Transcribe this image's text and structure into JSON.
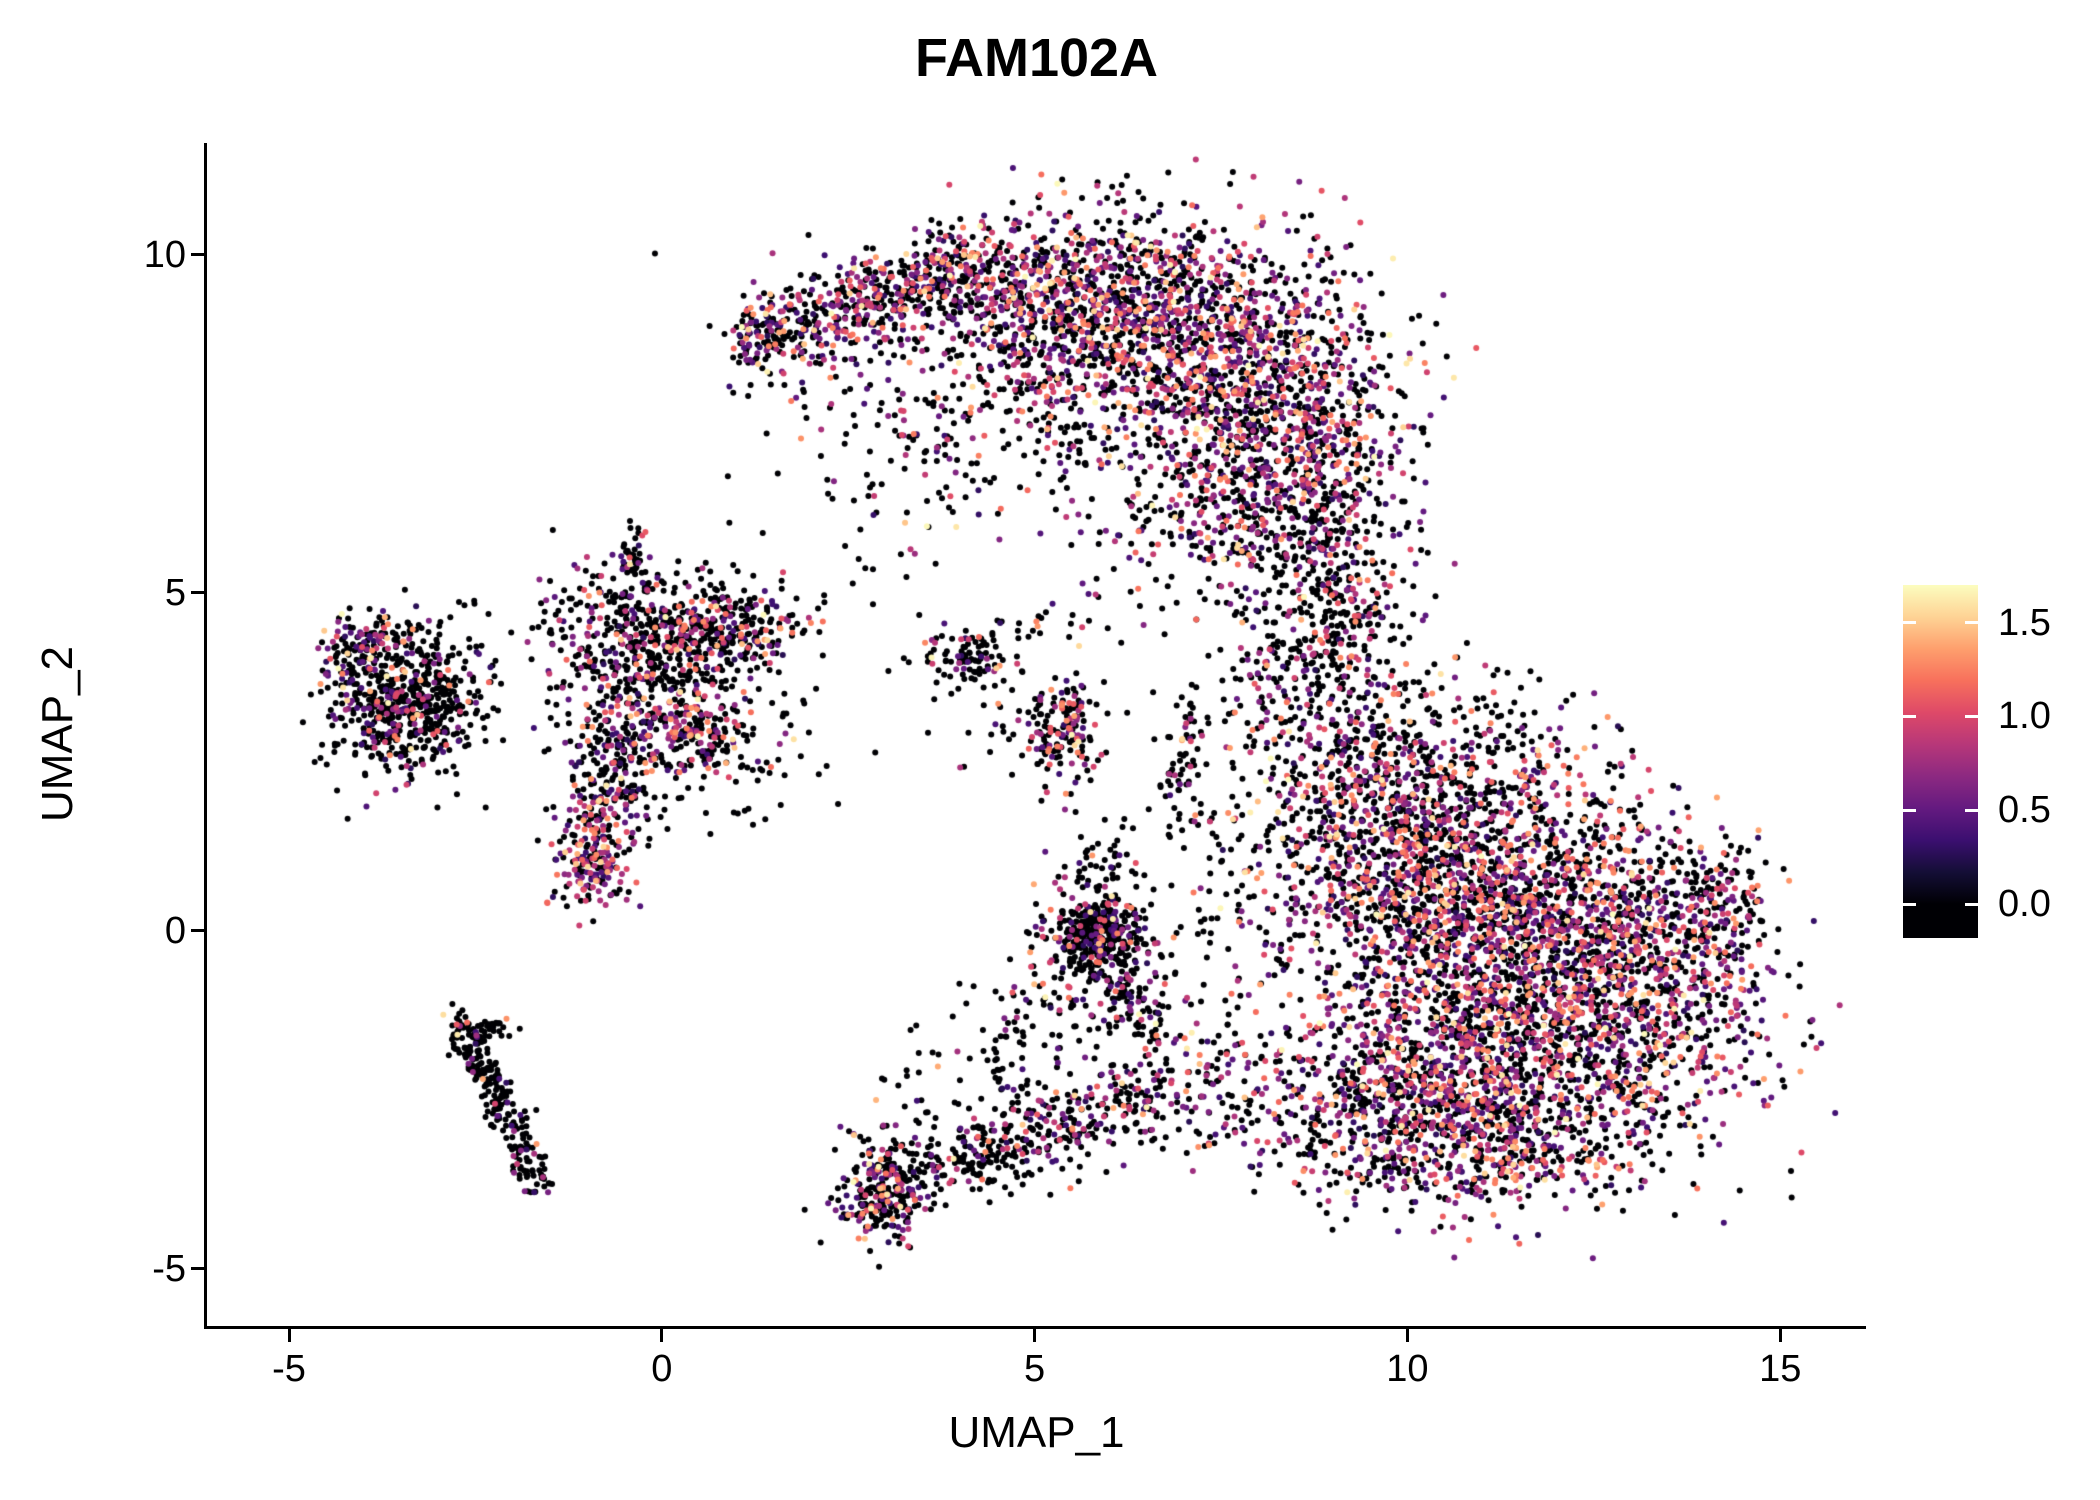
{
  "chart_data": {
    "type": "scatter",
    "title": "FAM102A",
    "xlabel": "UMAP_1",
    "ylabel": "UMAP_2",
    "xlim": [
      -6.1,
      16.15
    ],
    "ylim": [
      -5.85,
      11.65
    ],
    "x_ticks": [
      {
        "value": -5,
        "label": "-5"
      },
      {
        "value": 0,
        "label": "0"
      },
      {
        "value": 5,
        "label": "5"
      },
      {
        "value": 10,
        "label": "10"
      },
      {
        "value": 15,
        "label": "15"
      }
    ],
    "y_ticks": [
      {
        "value": 10,
        "label": "10"
      },
      {
        "value": 5,
        "label": "5"
      },
      {
        "value": 0,
        "label": "0"
      },
      {
        "value": -5,
        "label": "-5"
      }
    ],
    "grid": false,
    "background": "#ffffff",
    "point_radius_px": 3,
    "seed": 42,
    "value_max": 1.7,
    "value_bins": [
      [
        0,
        0
      ],
      [
        0.25,
        0.55
      ],
      [
        0.55,
        0.95
      ],
      [
        0.95,
        1.35
      ],
      [
        1.35,
        1.7
      ]
    ],
    "colormap": "magma",
    "colormap_stops": [
      "#000004",
      "#140e36",
      "#3b0f70",
      "#641a80",
      "#8c2981",
      "#b73779",
      "#de4968",
      "#f7705c",
      "#fe9f6d",
      "#fed395",
      "#fcfdbf"
    ],
    "legend": {
      "position": "right",
      "bar_range": [
        -0.18,
        1.7
      ],
      "ticks": [
        {
          "value": 1.5,
          "label": "1.5"
        },
        {
          "value": 1.0,
          "label": "1.0"
        },
        {
          "value": 0.5,
          "label": "0.5"
        },
        {
          "value": 0.0,
          "label": "0.0"
        }
      ],
      "tick_mark_color": "#ffffff"
    },
    "mixes": {
      "colorful": [
        0.5,
        0.15,
        0.17,
        0.14,
        0.04
      ],
      "mixed": [
        0.55,
        0.14,
        0.16,
        0.12,
        0.03
      ],
      "blackish": [
        0.68,
        0.1,
        0.11,
        0.09,
        0.02
      ],
      "mostly_black": [
        0.8,
        0.08,
        0.07,
        0.04,
        0.01
      ],
      "sparse_black": [
        0.86,
        0.05,
        0.05,
        0.03,
        0.01
      ],
      "pink_heavy": [
        0.38,
        0.15,
        0.24,
        0.18,
        0.05
      ]
    },
    "clusters": [
      {
        "name": "crescent-ridge",
        "kind": "stripe",
        "x1": 1.5,
        "y1": 8.8,
        "x2": 4.3,
        "y2": 9.9,
        "jitter": 0.32,
        "n": 500,
        "mix": "colorful"
      },
      {
        "name": "crescent-tip",
        "kind": "blob",
        "cx": 1.35,
        "cy": 8.8,
        "sx": 0.22,
        "sy": 0.28,
        "n": 90,
        "mix": "colorful"
      },
      {
        "name": "crescent-mid",
        "kind": "blob",
        "cx": 5.4,
        "cy": 9.4,
        "sx": 1.0,
        "sy": 0.62,
        "n": 800,
        "mix": "colorful"
      },
      {
        "name": "crescent-right",
        "kind": "blob",
        "cx": 7.3,
        "cy": 8.5,
        "sx": 1.15,
        "sy": 0.95,
        "n": 1200,
        "mix": "colorful"
      },
      {
        "name": "crescent-lower-right",
        "kind": "blob",
        "cx": 8.6,
        "cy": 7.1,
        "sx": 0.7,
        "sy": 1.0,
        "n": 600,
        "mix": "colorful"
      },
      {
        "name": "crescent-inner-sparse",
        "kind": "blob",
        "cx": 4.4,
        "cy": 7.9,
        "sx": 1.25,
        "sy": 0.75,
        "n": 240,
        "mix": "blackish"
      },
      {
        "name": "crescent-under",
        "kind": "blob",
        "cx": 7.6,
        "cy": 6.1,
        "sx": 0.85,
        "sy": 0.5,
        "n": 240,
        "mix": "colorful"
      },
      {
        "name": "crescent-below-sparse",
        "kind": "blob",
        "cx": 3.4,
        "cy": 7.1,
        "sx": 0.8,
        "sy": 0.55,
        "n": 70,
        "mix": "blackish"
      },
      {
        "name": "neck",
        "kind": "blob",
        "cx": 9.0,
        "cy": 4.6,
        "sx": 0.5,
        "sy": 1.05,
        "n": 300,
        "mix": "blackish"
      },
      {
        "name": "neck-west",
        "kind": "blob",
        "cx": 8.2,
        "cy": 3.8,
        "sx": 0.5,
        "sy": 0.7,
        "n": 120,
        "mix": "blackish"
      },
      {
        "name": "blob-upper",
        "kind": "blob",
        "cx": 10.4,
        "cy": 0.9,
        "sx": 1.0,
        "sy": 1.0,
        "n": 900,
        "mix": "colorful"
      },
      {
        "name": "blob-core",
        "kind": "blob",
        "cx": 11.6,
        "cy": 0.2,
        "sx": 1.3,
        "sy": 1.0,
        "n": 1200,
        "mix": "colorful"
      },
      {
        "name": "blob-lower",
        "kind": "blob",
        "cx": 11.6,
        "cy": -1.8,
        "sx": 1.4,
        "sy": 0.9,
        "n": 1200,
        "mix": "colorful"
      },
      {
        "name": "blob-lower-left",
        "kind": "blob",
        "cx": 10.0,
        "cy": -2.6,
        "sx": 1.0,
        "sy": 0.7,
        "n": 600,
        "mix": "colorful"
      },
      {
        "name": "blob-east",
        "kind": "blob",
        "cx": 13.4,
        "cy": -0.6,
        "sx": 0.75,
        "sy": 1.0,
        "n": 500,
        "mix": "colorful"
      },
      {
        "name": "blob-east-tip",
        "kind": "blob",
        "cx": 14.3,
        "cy": 0.4,
        "sx": 0.25,
        "sy": 0.5,
        "n": 90,
        "mix": "colorful"
      },
      {
        "name": "blob-top-scatter",
        "kind": "blob",
        "cx": 10.6,
        "cy": 2.6,
        "sx": 1.0,
        "sy": 0.6,
        "n": 240,
        "mix": "blackish"
      },
      {
        "name": "blob-bottom-tail",
        "kind": "blob",
        "cx": 11.2,
        "cy": -3.3,
        "sx": 1.0,
        "sy": 0.45,
        "n": 300,
        "mix": "colorful"
      },
      {
        "name": "blob-northwest",
        "kind": "blob",
        "cx": 9.3,
        "cy": 2.1,
        "sx": 0.55,
        "sy": 0.9,
        "n": 260,
        "mix": "colorful"
      },
      {
        "name": "west-of-blob-sparse",
        "kind": "blob",
        "cx": 7.9,
        "cy": 1.0,
        "sx": 0.7,
        "sy": 1.1,
        "n": 170,
        "mix": "blackish"
      },
      {
        "name": "trail-vertical",
        "kind": "stripe",
        "x1": 6.85,
        "y1": 1.4,
        "x2": 7.1,
        "y2": 3.4,
        "jitter": 0.15,
        "n": 70,
        "mix": "sparse_black"
      },
      {
        "name": "mid-sparse-upper",
        "kind": "blob",
        "cx": 6.3,
        "cy": 5.2,
        "sx": 0.5,
        "sy": 0.5,
        "n": 25,
        "mix": "sparse_black"
      },
      {
        "name": "clump-center",
        "kind": "blob",
        "cx": 5.85,
        "cy": -0.1,
        "sx": 0.28,
        "sy": 0.3,
        "n": 300,
        "mix": "mostly_black"
      },
      {
        "name": "clump-center-halo",
        "kind": "blob",
        "cx": 5.9,
        "cy": -0.2,
        "sx": 0.55,
        "sy": 0.55,
        "n": 150,
        "mix": "mixed"
      },
      {
        "name": "clump-tail",
        "kind": "stripe",
        "x1": 6.1,
        "y1": -0.6,
        "x2": 6.6,
        "y2": -1.6,
        "jitter": 0.2,
        "n": 80,
        "mix": "blackish"
      },
      {
        "name": "clump-above",
        "kind": "blob",
        "cx": 5.9,
        "cy": 0.9,
        "sx": 0.3,
        "sy": 0.4,
        "n": 40,
        "mix": "blackish"
      },
      {
        "name": "center-small-a",
        "kind": "blob",
        "cx": 4.1,
        "cy": 4.05,
        "sx": 0.32,
        "sy": 0.22,
        "n": 100,
        "mix": "mostly_black"
      },
      {
        "name": "center-small-b",
        "kind": "blob",
        "cx": 5.35,
        "cy": 3.0,
        "sx": 0.24,
        "sy": 0.45,
        "n": 160,
        "mix": "mixed"
      },
      {
        "name": "center-small-c",
        "kind": "blob",
        "cx": 5.0,
        "cy": 4.55,
        "sx": 0.28,
        "sy": 0.15,
        "n": 15,
        "mix": "sparse_black"
      },
      {
        "name": "center-small-halo",
        "kind": "blob",
        "cx": 4.8,
        "cy": 3.1,
        "sx": 0.5,
        "sy": 0.5,
        "n": 30,
        "mix": "sparse_black"
      },
      {
        "name": "left-main",
        "kind": "blob",
        "cx": -0.1,
        "cy": 4.2,
        "sx": 0.75,
        "sy": 0.6,
        "n": 600,
        "mix": "blackish"
      },
      {
        "name": "left-top-spike",
        "kind": "stripe",
        "x1": -0.45,
        "y1": 5.25,
        "x2": -0.3,
        "y2": 5.9,
        "jitter": 0.1,
        "n": 40,
        "mix": "mostly_black"
      },
      {
        "name": "left-right-arm",
        "kind": "blob",
        "cx": 1.15,
        "cy": 4.55,
        "sx": 0.45,
        "sy": 0.25,
        "n": 140,
        "mix": "mixed"
      },
      {
        "name": "left-down-arm",
        "kind": "stripe",
        "x1": -0.5,
        "y1": 3.1,
        "x2": -1.0,
        "y2": 1.1,
        "jitter": 0.3,
        "n": 280,
        "mix": "mixed"
      },
      {
        "name": "left-bottom-clump",
        "kind": "blob",
        "cx": -0.95,
        "cy": 0.9,
        "sx": 0.25,
        "sy": 0.3,
        "n": 120,
        "mix": "pink_heavy"
      },
      {
        "name": "left-mid-clump",
        "kind": "blob",
        "cx": 0.45,
        "cy": 2.9,
        "sx": 0.3,
        "sy": 0.3,
        "n": 130,
        "mix": "pink_heavy"
      },
      {
        "name": "left-scatter",
        "kind": "blob",
        "cx": 0.2,
        "cy": 3.3,
        "sx": 0.85,
        "sy": 0.85,
        "n": 130,
        "mix": "sparse_black"
      },
      {
        "name": "left-east-sparse",
        "kind": "blob",
        "cx": 1.4,
        "cy": 2.9,
        "sx": 0.45,
        "sy": 0.7,
        "n": 40,
        "mix": "sparse_black"
      },
      {
        "name": "farleft-core",
        "kind": "blob",
        "cx": -3.5,
        "cy": 3.3,
        "sx": 0.45,
        "sy": 0.5,
        "n": 500,
        "mix": "mostly_black"
      },
      {
        "name": "farleft-top-arm",
        "kind": "blob",
        "cx": -3.85,
        "cy": 4.3,
        "sx": 0.32,
        "sy": 0.18,
        "n": 90,
        "mix": "mixed"
      },
      {
        "name": "farleft-east",
        "kind": "blob",
        "cx": -2.9,
        "cy": 3.7,
        "sx": 0.3,
        "sy": 0.5,
        "n": 90,
        "mix": "mostly_black"
      },
      {
        "name": "farleft-west-tip",
        "kind": "blob",
        "cx": -4.15,
        "cy": 3.9,
        "sx": 0.18,
        "sy": 0.35,
        "n": 60,
        "mix": "mixed"
      },
      {
        "name": "streak-upper",
        "kind": "stripe",
        "x1": -2.8,
        "y1": -1.25,
        "x2": -2.25,
        "y2": -2.35,
        "jitter": 0.12,
        "n": 110,
        "mix": "sparse_black"
      },
      {
        "name": "streak-lower",
        "kind": "stripe",
        "x1": -2.25,
        "y1": -2.35,
        "x2": -1.65,
        "y2": -3.85,
        "jitter": 0.12,
        "n": 130,
        "mix": "sparse_black"
      },
      {
        "name": "streak-branch",
        "kind": "stripe",
        "x1": -2.5,
        "y1": -1.6,
        "x2": -2.05,
        "y2": -1.35,
        "jitter": 0.1,
        "n": 40,
        "mix": "sparse_black"
      },
      {
        "name": "bottom-clump",
        "kind": "blob",
        "cx": 2.95,
        "cy": -3.85,
        "sx": 0.3,
        "sy": 0.38,
        "n": 260,
        "mix": "mixed"
      },
      {
        "name": "bottom-arc-1",
        "kind": "stripe",
        "x1": 3.3,
        "y1": -3.7,
        "x2": 5.3,
        "y2": -3.0,
        "jitter": 0.3,
        "n": 220,
        "mix": "blackish"
      },
      {
        "name": "bottom-arc-2",
        "kind": "stripe",
        "x1": 5.3,
        "y1": -3.0,
        "x2": 6.6,
        "y2": -2.3,
        "jitter": 0.3,
        "n": 160,
        "mix": "mixed"
      },
      {
        "name": "bottom-arc-above",
        "kind": "blob",
        "cx": 4.3,
        "cy": -2.5,
        "sx": 0.8,
        "sy": 0.5,
        "n": 80,
        "mix": "sparse_black"
      },
      {
        "name": "bridge-to-blob",
        "kind": "blob",
        "cx": 7.4,
        "cy": -2.2,
        "sx": 0.6,
        "sy": 0.6,
        "n": 130,
        "mix": "mixed"
      },
      {
        "name": "mid-lower-sparse",
        "kind": "blob",
        "cx": 5.0,
        "cy": -1.4,
        "sx": 0.7,
        "sy": 0.55,
        "n": 70,
        "mix": "sparse_black"
      },
      {
        "name": "upper-mid-sparse",
        "kind": "blob",
        "cx": 3.0,
        "cy": 5.5,
        "sx": 0.5,
        "sy": 0.4,
        "n": 15,
        "mix": "sparse_black"
      },
      {
        "name": "neck-east-sparse",
        "kind": "blob",
        "cx": 9.9,
        "cy": 4.0,
        "sx": 0.55,
        "sy": 0.55,
        "n": 30,
        "mix": "sparse_black"
      }
    ]
  }
}
